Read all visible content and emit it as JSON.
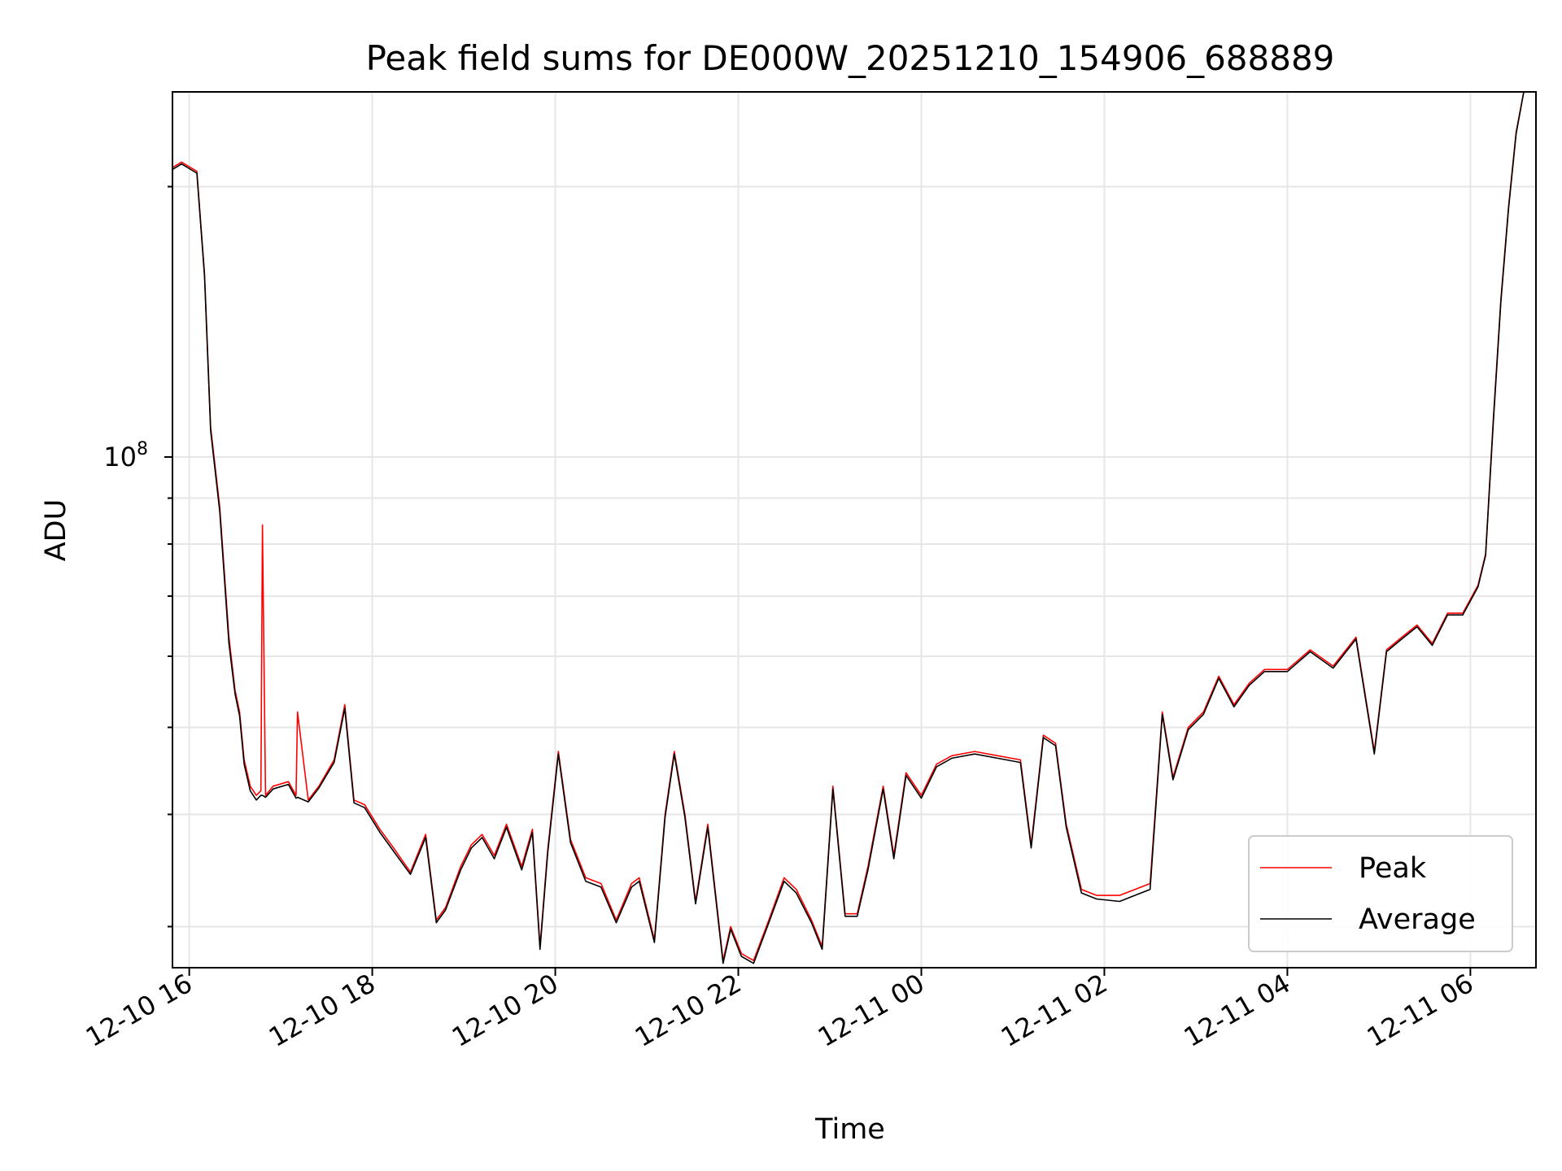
{
  "chart_data": {
    "type": "line",
    "title": "Peak field sums for DE000W_20251210_154906_688889",
    "xlabel": "Time",
    "ylabel": "ADU",
    "x_ticks": [
      "12-10 16",
      "12-10 18",
      "12-10 20",
      "12-10 22",
      "12-11 00",
      "12-11 02",
      "12-11 04",
      "12-11 06"
    ],
    "x_range": [
      "2025-12-10 15:49",
      "2025-12-11 06:43"
    ],
    "y_scale": "log",
    "y_major_tick_label": {
      "base": "10",
      "exponent": "8",
      "value": 100000000
    },
    "ylim": [
      27000000,
      255000000
    ],
    "grid": true,
    "legend_position": "lower-right",
    "colors": {
      "peak": "#ff0000",
      "average": "#000000"
    },
    "series": [
      {
        "name": "Peak",
        "color": "#ff0000",
        "x": [
          "2025-12-10 15:49",
          "2025-12-10 15:55",
          "2025-12-10 16:05",
          "2025-12-10 16:10",
          "2025-12-10 16:14",
          "2025-12-10 16:20",
          "2025-12-10 16:26",
          "2025-12-10 16:30",
          "2025-12-10 16:33",
          "2025-12-10 16:36",
          "2025-12-10 16:40",
          "2025-12-10 16:44",
          "2025-12-10 16:47",
          "2025-12-10 16:48",
          "2025-12-10 16:50",
          "2025-12-10 16:55",
          "2025-12-10 17:05",
          "2025-12-10 17:10",
          "2025-12-10 17:11",
          "2025-12-10 17:18",
          "2025-12-10 17:25",
          "2025-12-10 17:35",
          "2025-12-10 17:42",
          "2025-12-10 17:48",
          "2025-12-10 17:55",
          "2025-12-10 18:05",
          "2025-12-10 18:15",
          "2025-12-10 18:25",
          "2025-12-10 18:35",
          "2025-12-10 18:42",
          "2025-12-10 18:48",
          "2025-12-10 18:58",
          "2025-12-10 19:05",
          "2025-12-10 19:12",
          "2025-12-10 19:20",
          "2025-12-10 19:28",
          "2025-12-10 19:38",
          "2025-12-10 19:45",
          "2025-12-10 19:50",
          "2025-12-10 19:55",
          "2025-12-10 20:02",
          "2025-12-10 20:10",
          "2025-12-10 20:20",
          "2025-12-10 20:30",
          "2025-12-10 20:40",
          "2025-12-10 20:50",
          "2025-12-10 20:55",
          "2025-12-10 21:05",
          "2025-12-10 21:12",
          "2025-12-10 21:18",
          "2025-12-10 21:25",
          "2025-12-10 21:32",
          "2025-12-10 21:40",
          "2025-12-10 21:50",
          "2025-12-10 21:55",
          "2025-12-10 22:02",
          "2025-12-10 22:10",
          "2025-12-10 22:20",
          "2025-12-10 22:30",
          "2025-12-10 22:38",
          "2025-12-10 22:48",
          "2025-12-10 22:55",
          "2025-12-10 23:02",
          "2025-12-10 23:10",
          "2025-12-10 23:18",
          "2025-12-10 23:25",
          "2025-12-10 23:35",
          "2025-12-10 23:42",
          "2025-12-10 23:50",
          "2025-12-11 00:00",
          "2025-12-11 00:10",
          "2025-12-11 00:20",
          "2025-12-11 00:35",
          "2025-12-11 00:50",
          "2025-12-11 01:05",
          "2025-12-11 01:12",
          "2025-12-11 01:20",
          "2025-12-11 01:28",
          "2025-12-11 01:35",
          "2025-12-11 01:45",
          "2025-12-11 01:55",
          "2025-12-11 02:10",
          "2025-12-11 02:30",
          "2025-12-11 02:38",
          "2025-12-11 02:45",
          "2025-12-11 02:55",
          "2025-12-11 03:05",
          "2025-12-11 03:15",
          "2025-12-11 03:25",
          "2025-12-11 03:35",
          "2025-12-11 03:45",
          "2025-12-11 04:00",
          "2025-12-11 04:15",
          "2025-12-11 04:30",
          "2025-12-11 04:45",
          "2025-12-11 04:57",
          "2025-12-11 05:05",
          "2025-12-11 05:15",
          "2025-12-11 05:25",
          "2025-12-11 05:35",
          "2025-12-11 05:45",
          "2025-12-11 05:55",
          "2025-12-11 06:05",
          "2025-12-11 06:10",
          "2025-12-11 06:15",
          "2025-12-11 06:20",
          "2025-12-11 06:25",
          "2025-12-11 06:30",
          "2025-12-11 06:35",
          "2025-12-11 06:40",
          "2025-12-11 06:43"
        ],
        "y": [
          210000000,
          213000000,
          208000000,
          160000000,
          108000000,
          88000000,
          63000000,
          55000000,
          52000000,
          46000000,
          43000000,
          42000000,
          42500000,
          84000000,
          42000000,
          43000000,
          43500000,
          42000000,
          52000000,
          41500000,
          43000000,
          46000000,
          53000000,
          41500000,
          41000000,
          38500000,
          36500000,
          34500000,
          38000000,
          30500000,
          31500000,
          35000000,
          37000000,
          38000000,
          36000000,
          39000000,
          35000000,
          38500000,
          28500000,
          36500000,
          47000000,
          37500000,
          34000000,
          33500000,
          30500000,
          33500000,
          34000000,
          29000000,
          40000000,
          47000000,
          40000000,
          32000000,
          39000000,
          27500000,
          30000000,
          28000000,
          27500000,
          30500000,
          34000000,
          33000000,
          30500000,
          28500000,
          43000000,
          31000000,
          31000000,
          35000000,
          43000000,
          36000000,
          44500000,
          42000000,
          45500000,
          46500000,
          47000000,
          46500000,
          46000000,
          37000000,
          49000000,
          48000000,
          39000000,
          33000000,
          32500000,
          32500000,
          33500000,
          52000000,
          44000000,
          50000000,
          52000000,
          57000000,
          53000000,
          56000000,
          58000000,
          58000000,
          61000000,
          58500000,
          63000000,
          47000000,
          61000000,
          63000000,
          65000000,
          62000000,
          67000000,
          67000000,
          72000000,
          78000000,
          110000000,
          150000000,
          190000000,
          230000000,
          255000000,
          255000000,
          255000000
        ]
      },
      {
        "name": "Average",
        "color": "#000000",
        "x": [
          "2025-12-10 15:49",
          "2025-12-10 15:55",
          "2025-12-10 16:05",
          "2025-12-10 16:10",
          "2025-12-10 16:14",
          "2025-12-10 16:20",
          "2025-12-10 16:26",
          "2025-12-10 16:30",
          "2025-12-10 16:33",
          "2025-12-10 16:36",
          "2025-12-10 16:40",
          "2025-12-10 16:44",
          "2025-12-10 16:47",
          "2025-12-10 16:48",
          "2025-12-10 16:50",
          "2025-12-10 16:55",
          "2025-12-10 17:05",
          "2025-12-10 17:10",
          "2025-12-10 17:11",
          "2025-12-10 17:18",
          "2025-12-10 17:25",
          "2025-12-10 17:35",
          "2025-12-10 17:42",
          "2025-12-10 17:48",
          "2025-12-10 17:55",
          "2025-12-10 18:05",
          "2025-12-10 18:15",
          "2025-12-10 18:25",
          "2025-12-10 18:35",
          "2025-12-10 18:42",
          "2025-12-10 18:48",
          "2025-12-10 18:58",
          "2025-12-10 19:05",
          "2025-12-10 19:12",
          "2025-12-10 19:20",
          "2025-12-10 19:28",
          "2025-12-10 19:38",
          "2025-12-10 19:45",
          "2025-12-10 19:50",
          "2025-12-10 19:55",
          "2025-12-10 20:02",
          "2025-12-10 20:10",
          "2025-12-10 20:20",
          "2025-12-10 20:30",
          "2025-12-10 20:40",
          "2025-12-10 20:50",
          "2025-12-10 20:55",
          "2025-12-10 21:05",
          "2025-12-10 21:12",
          "2025-12-10 21:18",
          "2025-12-10 21:25",
          "2025-12-10 21:32",
          "2025-12-10 21:40",
          "2025-12-10 21:50",
          "2025-12-10 21:55",
          "2025-12-10 22:02",
          "2025-12-10 22:10",
          "2025-12-10 22:20",
          "2025-12-10 22:30",
          "2025-12-10 22:38",
          "2025-12-10 22:48",
          "2025-12-10 22:55",
          "2025-12-10 23:02",
          "2025-12-10 23:10",
          "2025-12-10 23:18",
          "2025-12-10 23:25",
          "2025-12-10 23:35",
          "2025-12-10 23:42",
          "2025-12-10 23:50",
          "2025-12-11 00:00",
          "2025-12-11 00:10",
          "2025-12-11 00:20",
          "2025-12-11 00:35",
          "2025-12-11 00:50",
          "2025-12-11 01:05",
          "2025-12-11 01:12",
          "2025-12-11 01:20",
          "2025-12-11 01:28",
          "2025-12-11 01:35",
          "2025-12-11 01:45",
          "2025-12-11 01:55",
          "2025-12-11 02:10",
          "2025-12-11 02:30",
          "2025-12-11 02:38",
          "2025-12-11 02:45",
          "2025-12-11 02:55",
          "2025-12-11 03:05",
          "2025-12-11 03:15",
          "2025-12-11 03:25",
          "2025-12-11 03:35",
          "2025-12-11 03:45",
          "2025-12-11 04:00",
          "2025-12-11 04:15",
          "2025-12-11 04:30",
          "2025-12-11 04:45",
          "2025-12-11 04:57",
          "2025-12-11 05:05",
          "2025-12-11 05:15",
          "2025-12-11 05:25",
          "2025-12-11 05:35",
          "2025-12-11 05:45",
          "2025-12-11 05:55",
          "2025-12-11 06:05",
          "2025-12-11 06:10",
          "2025-12-11 06:15",
          "2025-12-11 06:20",
          "2025-12-11 06:25",
          "2025-12-11 06:30",
          "2025-12-11 06:35",
          "2025-12-11 06:40",
          "2025-12-11 06:43"
        ],
        "y": [
          209000000,
          212000000,
          207000000,
          159000000,
          107000000,
          87000000,
          62000000,
          54500000,
          51500000,
          45500000,
          42500000,
          41500000,
          42000000,
          42000000,
          41800000,
          42700000,
          43200000,
          41700000,
          41800000,
          41300000,
          42800000,
          45700000,
          52500000,
          41200000,
          40700000,
          38200000,
          36200000,
          34300000,
          37700000,
          30300000,
          31300000,
          34700000,
          36700000,
          37700000,
          35700000,
          38700000,
          34700000,
          38200000,
          28300000,
          36200000,
          46700000,
          37200000,
          33700000,
          33200000,
          30300000,
          33200000,
          33700000,
          28800000,
          39700000,
          46700000,
          39700000,
          31800000,
          38700000,
          27300000,
          29800000,
          27800000,
          27300000,
          30300000,
          33700000,
          32700000,
          30300000,
          28300000,
          42700000,
          30800000,
          30800000,
          34700000,
          42700000,
          35700000,
          44200000,
          41700000,
          45200000,
          46200000,
          46700000,
          46200000,
          45700000,
          36700000,
          48700000,
          47700000,
          38700000,
          32700000,
          32200000,
          32000000,
          33000000,
          51700000,
          43700000,
          49700000,
          51700000,
          56700000,
          52700000,
          55700000,
          57700000,
          57700000,
          60700000,
          58200000,
          62700000,
          46700000,
          60700000,
          62700000,
          64700000,
          61700000,
          66700000,
          66700000,
          71700000,
          77700000,
          109000000,
          149000000,
          189000000,
          229000000,
          255000000,
          255000000,
          255000000
        ]
      }
    ]
  }
}
